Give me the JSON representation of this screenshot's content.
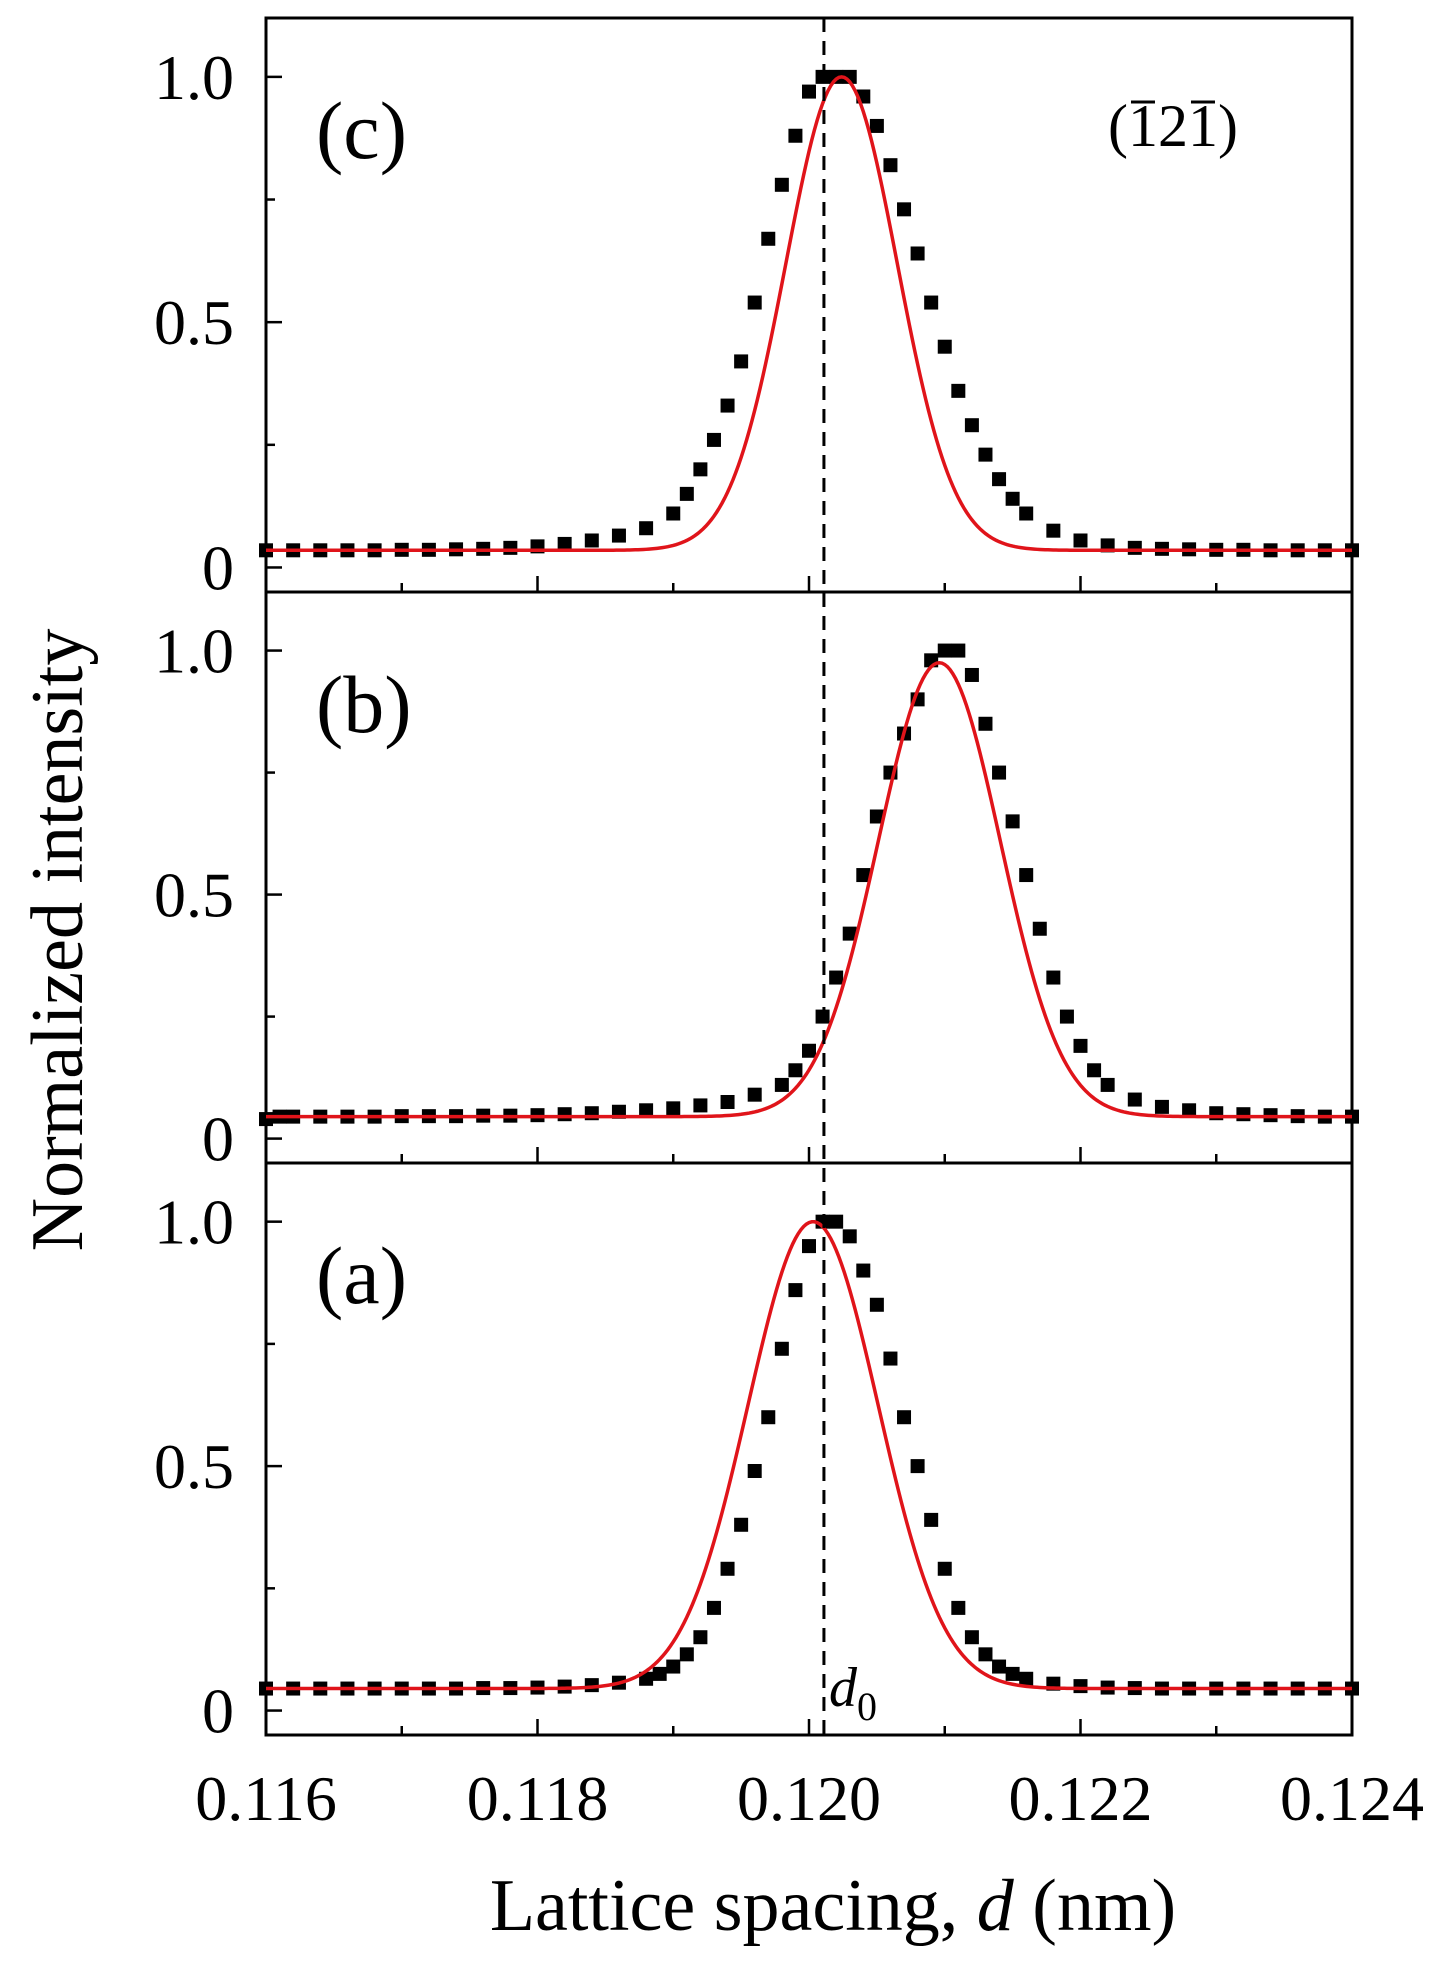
{
  "chart_data": {
    "type": "scatter",
    "title": "",
    "xlabel": "Lattice spacing, d (nm)",
    "xlabel_parts": {
      "pre": "Lattice spacing, ",
      "italic": "d",
      "post": " (nm)"
    },
    "ylabel": "Normalized intensity",
    "xlim": [
      0.116,
      0.124
    ],
    "x_ticks": [
      "0.116",
      "0.118",
      "0.120",
      "0.122",
      "0.124"
    ],
    "x_tick_values": [
      0.116,
      0.118,
      0.12,
      0.122,
      0.124
    ],
    "reference_line": {
      "x": 0.12011,
      "style": "dashed",
      "label_symbol": "d",
      "label_sub": "0"
    },
    "miller_index": {
      "text": "(1̄21̄)",
      "parts": [
        "(",
        "1",
        "2",
        "1",
        ")"
      ],
      "overlined": [
        1,
        3
      ]
    },
    "colors": {
      "markers": "#000000",
      "fit": "#e0141a",
      "axis": "#000000"
    },
    "panels": [
      {
        "id": "c",
        "label": "(c)",
        "order_from_top": 0,
        "ylim": [
          -0.05,
          1.12
        ],
        "y_ticks": [
          "0",
          "0.5",
          "1.0"
        ],
        "y_tick_values": [
          0,
          0.5,
          1.0
        ],
        "fit": {
          "model": "gaussian",
          "center": 0.12024,
          "sigma": 0.00041,
          "amplitude": 0.965,
          "baseline": 0.035
        },
        "series": [
          {
            "name": "data",
            "style": "square-markers",
            "x": [
              0.116,
              0.1162,
              0.1164,
              0.1166,
              0.1168,
              0.117,
              0.1172,
              0.1174,
              0.1176,
              0.1178,
              0.118,
              0.1182,
              0.1184,
              0.1186,
              0.1188,
              0.119,
              0.1191,
              0.1192,
              0.1193,
              0.1194,
              0.1195,
              0.1196,
              0.1197,
              0.1198,
              0.1199,
              0.12,
              0.1201,
              0.1202,
              0.1203,
              0.1204,
              0.1205,
              0.1206,
              0.1207,
              0.1208,
              0.1209,
              0.121,
              0.1211,
              0.1212,
              0.1213,
              0.1214,
              0.1215,
              0.1216,
              0.1218,
              0.122,
              0.1222,
              0.1224,
              0.1226,
              0.1228,
              0.123,
              0.1232,
              0.1234,
              0.1236,
              0.1238,
              0.124
            ],
            "y": [
              0.035,
              0.035,
              0.035,
              0.035,
              0.035,
              0.036,
              0.036,
              0.037,
              0.038,
              0.04,
              0.043,
              0.048,
              0.055,
              0.065,
              0.08,
              0.11,
              0.15,
              0.2,
              0.26,
              0.33,
              0.42,
              0.54,
              0.67,
              0.78,
              0.88,
              0.97,
              1.0,
              1.0,
              1.0,
              0.96,
              0.9,
              0.82,
              0.73,
              0.64,
              0.54,
              0.45,
              0.36,
              0.29,
              0.23,
              0.18,
              0.14,
              0.11,
              0.075,
              0.055,
              0.045,
              0.04,
              0.038,
              0.037,
              0.036,
              0.036,
              0.035,
              0.035,
              0.035,
              0.035
            ]
          }
        ]
      },
      {
        "id": "b",
        "label": "(b)",
        "order_from_top": 1,
        "ylim": [
          -0.05,
          1.12
        ],
        "y_ticks": [
          "0",
          "0.5",
          "1.0"
        ],
        "y_tick_values": [
          0,
          0.5,
          1.0
        ],
        "fit": {
          "model": "gaussian",
          "center": 0.12096,
          "sigma": 0.00045,
          "amplitude": 0.93,
          "baseline": 0.045
        },
        "series": [
          {
            "name": "data",
            "style": "square-markers",
            "x": [
              0.116,
              0.1161,
              0.1162,
              0.1164,
              0.1166,
              0.1168,
              0.117,
              0.1172,
              0.1174,
              0.1176,
              0.1178,
              0.118,
              0.1182,
              0.1184,
              0.1186,
              0.1188,
              0.119,
              0.1192,
              0.1194,
              0.1196,
              0.1198,
              0.1199,
              0.12,
              0.1201,
              0.1202,
              0.1203,
              0.1204,
              0.1205,
              0.1206,
              0.1207,
              0.1208,
              0.1209,
              0.121,
              0.1211,
              0.1212,
              0.1213,
              0.1214,
              0.1215,
              0.1216,
              0.1217,
              0.1218,
              0.1219,
              0.122,
              0.1221,
              0.1222,
              0.1224,
              0.1226,
              0.1228,
              0.123,
              0.1232,
              0.1234,
              0.1236,
              0.1238,
              0.124
            ],
            "y": [
              0.04,
              0.045,
              0.045,
              0.045,
              0.045,
              0.045,
              0.046,
              0.046,
              0.046,
              0.047,
              0.047,
              0.048,
              0.05,
              0.052,
              0.055,
              0.058,
              0.062,
              0.068,
              0.075,
              0.09,
              0.11,
              0.14,
              0.18,
              0.25,
              0.33,
              0.42,
              0.54,
              0.66,
              0.75,
              0.83,
              0.9,
              0.98,
              1.0,
              1.0,
              0.95,
              0.85,
              0.75,
              0.65,
              0.54,
              0.43,
              0.33,
              0.25,
              0.19,
              0.14,
              0.11,
              0.08,
              0.065,
              0.058,
              0.052,
              0.05,
              0.048,
              0.046,
              0.045,
              0.045
            ]
          }
        ]
      },
      {
        "id": "a",
        "label": "(a)",
        "order_from_top": 2,
        "ylim": [
          -0.05,
          1.12
        ],
        "y_ticks": [
          "0",
          "0.5",
          "1.0"
        ],
        "y_tick_values": [
          0,
          0.5,
          1.0
        ],
        "fit": {
          "model": "gaussian",
          "center": 0.12003,
          "sigma": 0.00048,
          "amplitude": 0.955,
          "baseline": 0.045
        },
        "series": [
          {
            "name": "data",
            "style": "square-markers",
            "x": [
              0.116,
              0.1162,
              0.1164,
              0.1166,
              0.1168,
              0.117,
              0.1172,
              0.1174,
              0.1176,
              0.1178,
              0.118,
              0.1182,
              0.1184,
              0.1186,
              0.1188,
              0.1189,
              0.119,
              0.1191,
              0.1192,
              0.1193,
              0.1194,
              0.1195,
              0.1196,
              0.1197,
              0.1198,
              0.1199,
              0.12,
              0.1201,
              0.1202,
              0.1203,
              0.1204,
              0.1205,
              0.1206,
              0.1207,
              0.1208,
              0.1209,
              0.121,
              0.1211,
              0.1212,
              0.1213,
              0.1214,
              0.1215,
              0.1216,
              0.1218,
              0.122,
              0.1222,
              0.1224,
              0.1226,
              0.1228,
              0.123,
              0.1232,
              0.1234,
              0.1236,
              0.1238,
              0.124
            ],
            "y": [
              0.045,
              0.045,
              0.045,
              0.045,
              0.045,
              0.045,
              0.045,
              0.045,
              0.046,
              0.046,
              0.047,
              0.049,
              0.052,
              0.057,
              0.065,
              0.075,
              0.09,
              0.115,
              0.15,
              0.21,
              0.29,
              0.38,
              0.49,
              0.6,
              0.74,
              0.86,
              0.95,
              1.0,
              1.0,
              0.97,
              0.9,
              0.83,
              0.72,
              0.6,
              0.5,
              0.39,
              0.29,
              0.21,
              0.15,
              0.115,
              0.09,
              0.075,
              0.065,
              0.055,
              0.05,
              0.047,
              0.046,
              0.045,
              0.045,
              0.045,
              0.045,
              0.045,
              0.045,
              0.045,
              0.045
            ]
          }
        ]
      }
    ]
  }
}
